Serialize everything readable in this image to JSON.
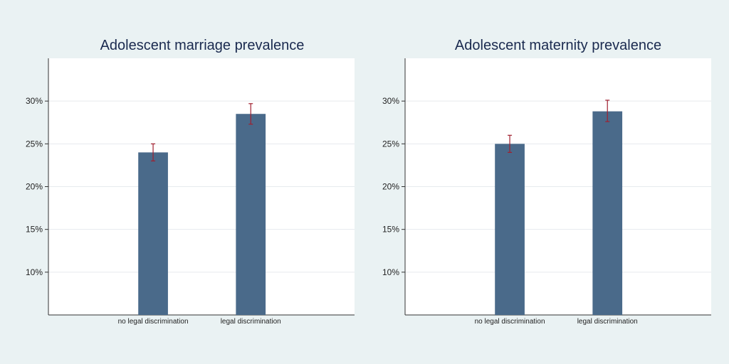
{
  "colors": {
    "background": "#eaf2f3",
    "plot_background": "#ffffff",
    "bar": "#4a6a8a",
    "error_bar": "#a02030",
    "grid": "#e6eaee",
    "axis": "#333333"
  },
  "chart_data": [
    {
      "type": "bar",
      "title": "Adolescent marriage prevalence",
      "xlabel": "",
      "ylabel": "",
      "categories": [
        "no legal discrimination",
        "legal discrimination"
      ],
      "values": [
        0.24,
        0.285
      ],
      "error_low": [
        0.23,
        0.273
      ],
      "error_high": [
        0.25,
        0.297
      ],
      "ylim": [
        0.05,
        0.35
      ],
      "yticks": [
        0.1,
        0.15,
        0.2,
        0.25,
        0.3
      ],
      "ytick_labels": [
        "10%",
        "15%",
        "20%",
        "25%",
        "30%"
      ],
      "grid": true
    },
    {
      "type": "bar",
      "title": "Adolescent  maternity prevalence",
      "xlabel": "",
      "ylabel": "",
      "categories": [
        "no legal discrimination",
        "legal discrimination"
      ],
      "values": [
        0.25,
        0.288
      ],
      "error_low": [
        0.24,
        0.276
      ],
      "error_high": [
        0.26,
        0.301
      ],
      "ylim": [
        0.05,
        0.35
      ],
      "yticks": [
        0.1,
        0.15,
        0.2,
        0.25,
        0.3
      ],
      "ytick_labels": [
        "10%",
        "15%",
        "20%",
        "25%",
        "30%"
      ],
      "grid": true
    }
  ]
}
